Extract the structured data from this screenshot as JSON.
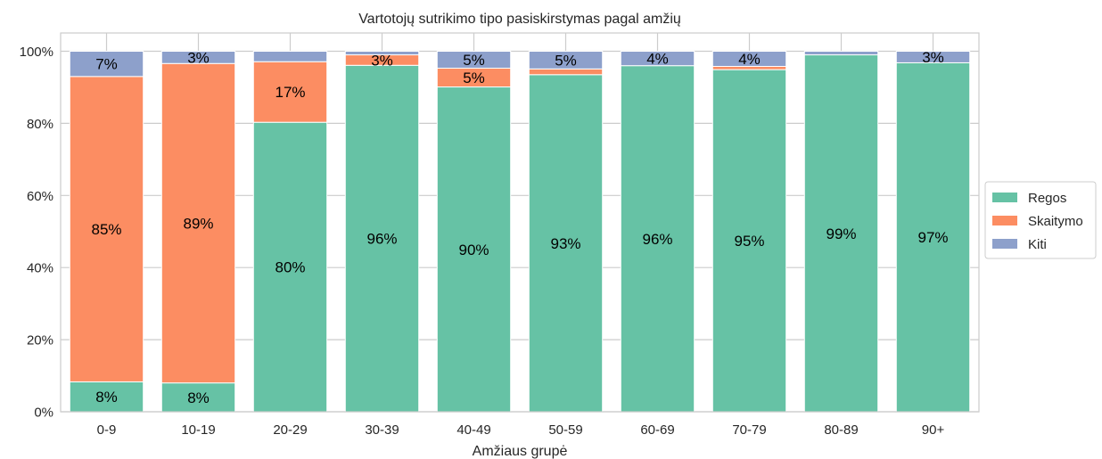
{
  "chart_data": {
    "type": "bar",
    "stacked": true,
    "title": "Vartotojų sutrikimo tipo pasiskirstymas pagal amžių",
    "xlabel": "Amžiaus grupė",
    "ylabel": "",
    "ylim": [
      0,
      100
    ],
    "yticks": [
      0,
      20,
      40,
      60,
      80,
      100
    ],
    "ytick_labels": [
      "0%",
      "20%",
      "40%",
      "60%",
      "80%",
      "100%"
    ],
    "grid": true,
    "legend_position": "right",
    "categories": [
      "0-9",
      "10-19",
      "20-29",
      "30-39",
      "40-49",
      "50-59",
      "60-69",
      "70-79",
      "80-89",
      "90+"
    ],
    "series": [
      {
        "name": "Regos",
        "color": "#66c2a5",
        "values": [
          8.3,
          8.0,
          80.3,
          96.1,
          90.1,
          93.5,
          96.0,
          94.9,
          99.0,
          96.8
        ],
        "labels": [
          "8%",
          "8%",
          "80%",
          "96%",
          "90%",
          "93%",
          "96%",
          "95%",
          "99%",
          "97%"
        ]
      },
      {
        "name": "Skaitymo",
        "color": "#fc8d62",
        "values": [
          84.7,
          88.6,
          16.8,
          2.9,
          5.2,
          1.6,
          0.0,
          0.9,
          0.0,
          0.0
        ],
        "labels": [
          "85%",
          "89%",
          "17%",
          "3%",
          "5%",
          "",
          "",
          "",
          "",
          ""
        ]
      },
      {
        "name": "Kiti",
        "color": "#8da0cb",
        "values": [
          7.0,
          3.4,
          2.9,
          1.0,
          4.7,
          4.9,
          4.0,
          4.2,
          1.0,
          3.2
        ],
        "labels": [
          "7%",
          "3%",
          "",
          "",
          "5%",
          "5%",
          "4%",
          "4%",
          "",
          "3%"
        ]
      }
    ]
  }
}
